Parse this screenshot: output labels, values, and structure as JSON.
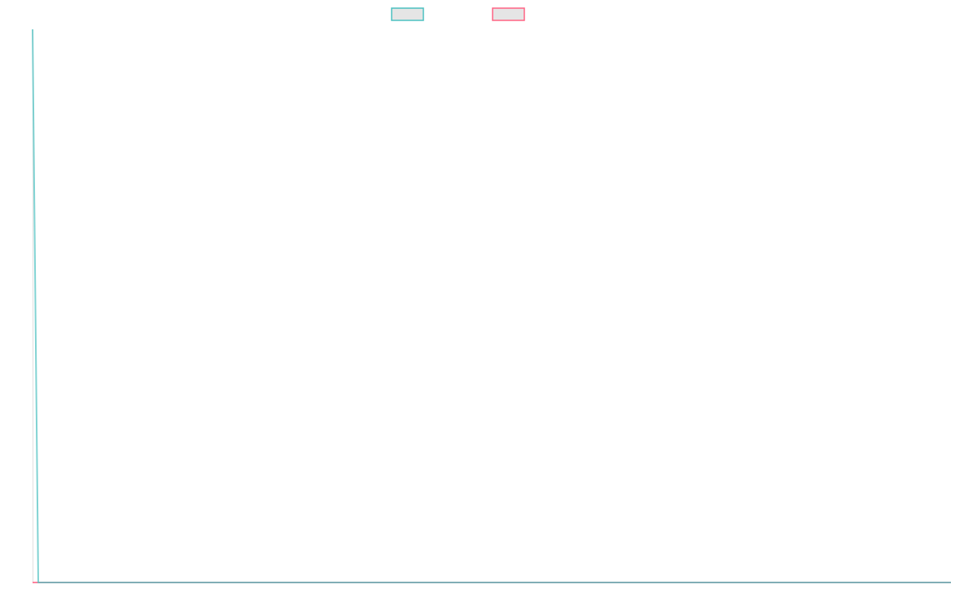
{
  "chart_data": {
    "type": "line",
    "title": "",
    "xlabel": "",
    "ylabel": "",
    "point_count": 162,
    "ylim": [
      0,
      100
    ],
    "grid": false,
    "legend_placement": "top",
    "series": [
      {
        "color": "#4bc0c0",
        "fill": "#e5e5e5",
        "first_value": 100,
        "rest_value": 0
      },
      {
        "color": "#ff6384",
        "fill": "#e5e5e5",
        "first_value": 0,
        "rest_value": 0
      }
    ]
  }
}
